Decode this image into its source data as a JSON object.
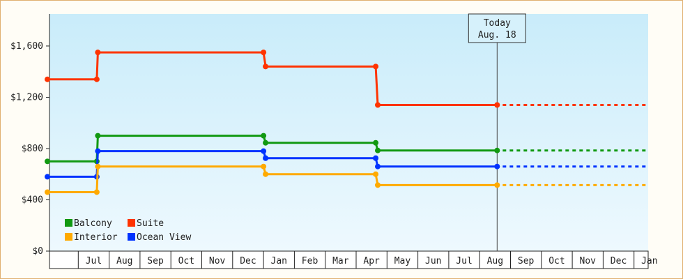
{
  "chart_data": {
    "type": "line",
    "step": true,
    "title": "",
    "xlabel": "",
    "ylabel": "",
    "ylim": [
      0,
      1850
    ],
    "yticks": [
      0,
      400,
      800,
      1200,
      1600
    ],
    "ytick_labels": [
      "$0",
      "$400",
      "$800",
      "$1,200",
      "$1,600"
    ],
    "x_months": [
      "Jul",
      "Aug",
      "Sep",
      "Oct",
      "Nov",
      "Dec",
      "Jan",
      "Feb",
      "Mar",
      "Apr",
      "May",
      "Jun",
      "Jul",
      "Aug",
      "Sep",
      "Oct",
      "Nov",
      "Dec",
      "Jan"
    ],
    "x_range": [
      "2013-06-01",
      "2014-12-31"
    ],
    "today": {
      "label_line1": "Today",
      "label_line2": "Aug. 18",
      "date": "2014-08-18"
    },
    "grid": false,
    "legend_position": "bottom-left",
    "series": [
      {
        "name": "Suite",
        "color": "#ff3300",
        "points": [
          {
            "date": "2013-06-01",
            "value": 1340
          },
          {
            "date": "2013-07-19",
            "value": 1340
          },
          {
            "date": "2013-07-20",
            "value": 1550
          },
          {
            "date": "2014-01-01",
            "value": 1550
          },
          {
            "date": "2014-01-03",
            "value": 1440
          },
          {
            "date": "2014-04-20",
            "value": 1440
          },
          {
            "date": "2014-04-22",
            "value": 1140
          },
          {
            "date": "2014-08-18",
            "value": 1140
          }
        ],
        "projection": 1140
      },
      {
        "name": "Balcony",
        "color": "#119911",
        "points": [
          {
            "date": "2013-06-01",
            "value": 700
          },
          {
            "date": "2013-07-19",
            "value": 700
          },
          {
            "date": "2013-07-20",
            "value": 900
          },
          {
            "date": "2014-01-01",
            "value": 900
          },
          {
            "date": "2014-01-03",
            "value": 845
          },
          {
            "date": "2014-04-20",
            "value": 845
          },
          {
            "date": "2014-04-22",
            "value": 785
          },
          {
            "date": "2014-08-18",
            "value": 785
          }
        ],
        "projection": 785
      },
      {
        "name": "Ocean View",
        "color": "#0033ff",
        "points": [
          {
            "date": "2013-06-01",
            "value": 580
          },
          {
            "date": "2013-07-19",
            "value": 580
          },
          {
            "date": "2013-07-20",
            "value": 780
          },
          {
            "date": "2014-01-01",
            "value": 780
          },
          {
            "date": "2014-01-03",
            "value": 725
          },
          {
            "date": "2014-04-20",
            "value": 725
          },
          {
            "date": "2014-04-22",
            "value": 660
          },
          {
            "date": "2014-08-18",
            "value": 660
          }
        ],
        "projection": 660
      },
      {
        "name": "Interior",
        "color": "#ffaa00",
        "points": [
          {
            "date": "2013-06-01",
            "value": 460
          },
          {
            "date": "2013-07-19",
            "value": 460
          },
          {
            "date": "2013-07-20",
            "value": 660
          },
          {
            "date": "2014-01-01",
            "value": 660
          },
          {
            "date": "2014-01-03",
            "value": 600
          },
          {
            "date": "2014-04-20",
            "value": 600
          },
          {
            "date": "2014-04-22",
            "value": 515
          },
          {
            "date": "2014-08-18",
            "value": 515
          }
        ],
        "projection": 515
      }
    ],
    "legend_items": [
      {
        "name": "Balcony",
        "color": "#119911"
      },
      {
        "name": "Suite",
        "color": "#ff3300"
      },
      {
        "name": "Interior",
        "color": "#ffaa00"
      },
      {
        "name": "Ocean View",
        "color": "#0033ff"
      }
    ]
  }
}
